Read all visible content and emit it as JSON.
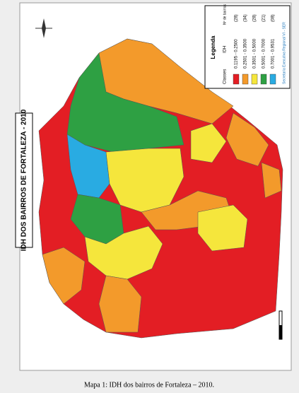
{
  "map": {
    "title": "IDH DOS BAIRROS DE FORTALEZA - 2010",
    "legend": {
      "title": "Legenda",
      "classes_label": "Classes",
      "idh_label": "IDH",
      "count_label": "Nº de bairros",
      "items": [
        {
          "range": "0.1195 - 0.2500",
          "count": "(28)",
          "color": "#e31e24"
        },
        {
          "range": "0.2501 - 0.3500",
          "count": "(34)",
          "color": "#f39a2b"
        },
        {
          "range": "0.3501 - 0.5000",
          "count": "(28)",
          "color": "#f5e63c"
        },
        {
          "range": "0.5001 - 0.7000",
          "count": "(21)",
          "color": "#2ea043"
        },
        {
          "range": "0.7001 - 0.9531",
          "count": "(08)",
          "color": "#29abe2"
        }
      ],
      "source": "Secretaria Executiva Regional VI - SER"
    }
  },
  "caption": "Mapa 1: IDH dos bairros de Fortaleza – 2010."
}
